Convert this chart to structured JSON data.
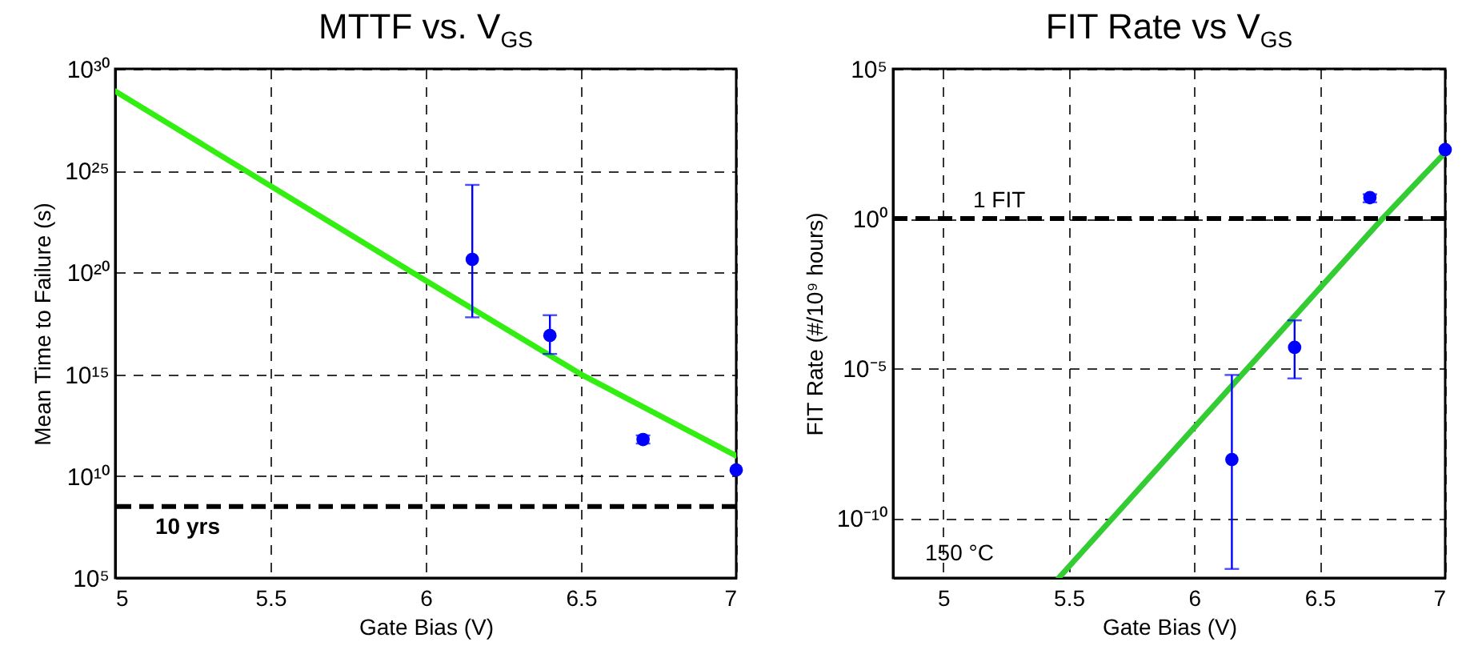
{
  "chart_data": [
    {
      "type": "scatter",
      "title": "MTTF vs. V$_{GS}$",
      "xlabel": "Gate Bias (V)",
      "ylabel": "Mean Time to Failure (s)",
      "xlim": [
        5,
        7
      ],
      "xticks": [
        5,
        5.5,
        6,
        6.5,
        7
      ],
      "ylim": [
        100000.0,
        1e+30
      ],
      "yticks": [
        {
          "value": 100000.0,
          "label": "10⁵"
        },
        {
          "value": 10000000000.0,
          "label": "10¹⁰"
        },
        {
          "value": 1000000000000000.0,
          "label": "10¹⁵"
        },
        {
          "value": 1e+20,
          "label": "10²⁰"
        },
        {
          "value": 1e+25,
          "label": "10²⁵"
        },
        {
          "value": 1e+30,
          "label": "10³⁰"
        }
      ],
      "log": true,
      "grid": true,
      "series": [
        {
          "type": "line",
          "color": "#33ee11",
          "x": [
            5,
            6,
            6.5,
            7
          ],
          "values": [
            8e+28,
            4e+19,
            1000000000000000.0,
            100000000000.0
          ]
        },
        {
          "color": "#0000ff",
          "marker": "circle",
          "x": [
            6.15,
            6.4,
            6.7,
            7
          ],
          "values": [
            4.4e+20,
            8e+16,
            630000000000.0,
            20000000000.0
          ],
          "errors": [
            [
              6.3e+17,
              2e+24
            ],
            [
              1e+16,
              8e+17
            ],
            [
              400000000000.0,
              1000000000000.0
            ],
            null
          ]
        }
      ],
      "ref_lines": [
        {
          "axis": "y",
          "value": 320000000.0,
          "label": "10 yrs",
          "color": "#000000",
          "line_style": "dashed"
        }
      ]
    },
    {
      "type": "scatter",
      "title": "FIT Rate vs V$_{GS}$",
      "xlabel": "Gate Bias (V)",
      "ylabel": "FIT Rate (#/10⁹ hours)",
      "xlim": [
        4.8,
        7
      ],
      "xticks": [
        5,
        5.5,
        6,
        6.5,
        7
      ],
      "ylim": [
        1e-12,
        100000.0
      ],
      "yticks": [
        {
          "value": 1e-10,
          "label": "10⁻¹⁰"
        },
        {
          "value": 1e-05,
          "label": "10⁻⁵"
        },
        {
          "value": 1,
          "label": "10⁰"
        },
        {
          "value": 100000.0,
          "label": "10⁵"
        }
      ],
      "log": true,
      "grid": true,
      "series": [
        {
          "type": "line",
          "color": "#33cc33",
          "x": [
            5.46,
            6.75,
            7
          ],
          "values": [
            1e-12,
            1,
            160
          ]
        },
        {
          "color": "#0000ff",
          "marker": "circle",
          "x": [
            6.15,
            6.4,
            6.7,
            7
          ],
          "values": [
            9e-09,
            5e-05,
            5,
            200
          ],
          "errors": [
            [
              2e-12,
              6e-06
            ],
            [
              4.6e-06,
              0.0004
            ],
            [
              3.5,
              6.5
            ],
            null
          ]
        }
      ],
      "ref_lines": [
        {
          "axis": "y",
          "value": 1,
          "label": "1 FIT",
          "color": "#000000",
          "line_style": "dashed"
        }
      ],
      "annotations": [
        "150 °C"
      ]
    }
  ]
}
